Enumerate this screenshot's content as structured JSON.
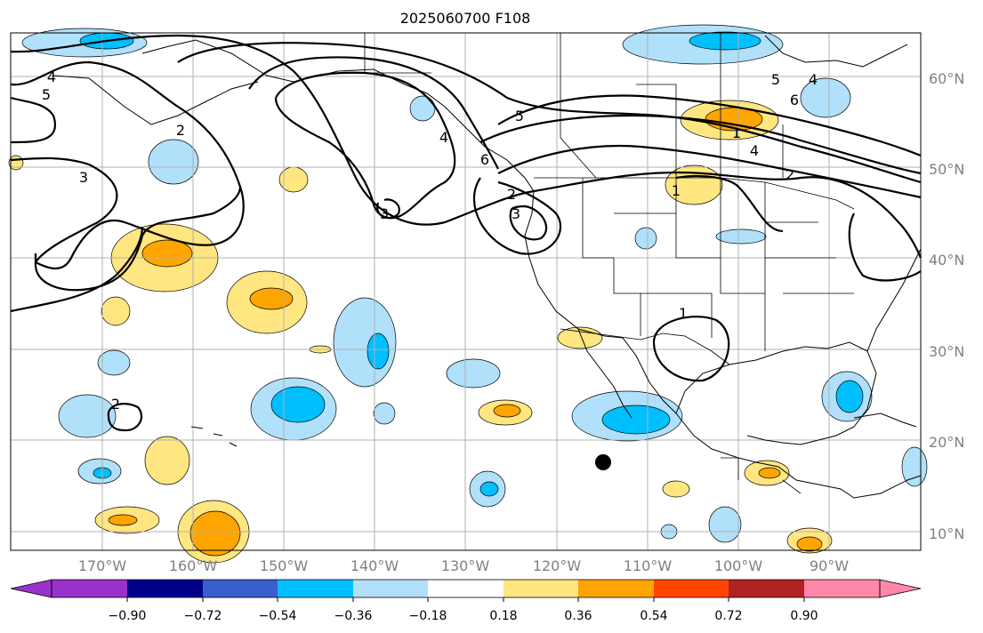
{
  "title": "2025060700 F108",
  "map": {
    "lat_labels": [
      "60°N",
      "50°N",
      "40°N",
      "30°N",
      "20°N",
      "10°N"
    ],
    "lon_labels": [
      "170°W",
      "160°W",
      "150°W",
      "140°W",
      "130°W",
      "120°W",
      "110°W",
      "100°W",
      "90°W"
    ],
    "contour_labels": [
      "4",
      "5",
      "3",
      "2",
      "5",
      "4",
      "6",
      "2",
      "1",
      "2",
      "3",
      "3",
      "4",
      "4",
      "6",
      "5",
      "2",
      "1",
      "1"
    ],
    "colors": {
      "purple": "#9932cc",
      "navy": "#00008b",
      "royal": "#3a5fcd",
      "deepsky": "#00bfff",
      "lightblue": "#b0e0fa",
      "white": "#ffffff",
      "lightyellow": "#ffe680",
      "orange": "#ffa500",
      "orangered": "#ff4500",
      "firebrick": "#b22222",
      "pink": "#ff88aa"
    }
  },
  "colorbar": {
    "ticks": [
      "−0.90",
      "−0.72",
      "−0.54",
      "−0.36",
      "−0.18",
      "0.18",
      "0.36",
      "0.54",
      "0.72",
      "0.90"
    ],
    "segments": [
      "#00008b",
      "#3a5fcd",
      "#00bfff",
      "#b0e0fa",
      "#ffffff",
      "#ffe680",
      "#ffa500",
      "#ff4500",
      "#b22222"
    ],
    "extend_low": "#9932cc",
    "extend_high": "#ff88aa"
  }
}
